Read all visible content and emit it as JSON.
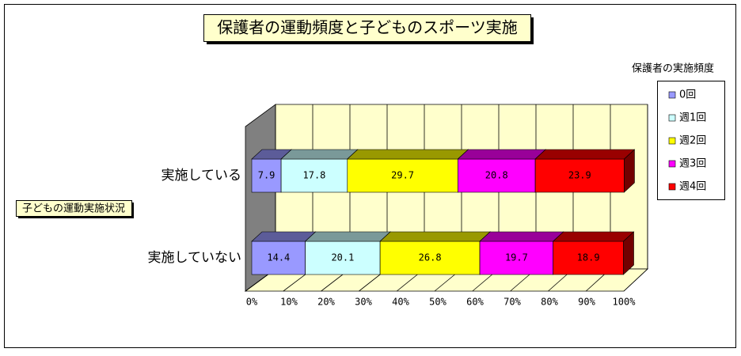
{
  "chart_data": {
    "type": "stacked-bar-3d",
    "title": "保護者の運動頻度と子どものスポーツ実施",
    "y_axis_title": "子どもの運動実施状況",
    "legend_title": "保護者の実施頻度",
    "categories": [
      "実施している",
      "実施していない"
    ],
    "series": [
      {
        "name": "0回",
        "color": "#9999ff",
        "values": [
          7.9,
          14.4
        ]
      },
      {
        "name": "週1回",
        "color": "#ccffff",
        "values": [
          17.8,
          20.1
        ]
      },
      {
        "name": "週2回",
        "color": "#ffff00",
        "values": [
          29.7,
          26.8
        ]
      },
      {
        "name": "週3回",
        "color": "#ff00ff",
        "values": [
          20.8,
          19.7
        ]
      },
      {
        "name": "週4回",
        "color": "#ff0000",
        "values": [
          23.9,
          18.9
        ]
      }
    ],
    "xlim": [
      0,
      100
    ],
    "xticks": [
      {
        "value": 0,
        "label": "0%"
      },
      {
        "value": 10,
        "label": "10%"
      },
      {
        "value": 20,
        "label": "20%"
      },
      {
        "value": 30,
        "label": "30%"
      },
      {
        "value": 40,
        "label": "40%"
      },
      {
        "value": 50,
        "label": "50%"
      },
      {
        "value": 60,
        "label": "60%"
      },
      {
        "value": 70,
        "label": "70%"
      },
      {
        "value": 80,
        "label": "80%"
      },
      {
        "value": 90,
        "label": "90%"
      },
      {
        "value": 100,
        "label": "100%"
      }
    ],
    "grid": true
  }
}
